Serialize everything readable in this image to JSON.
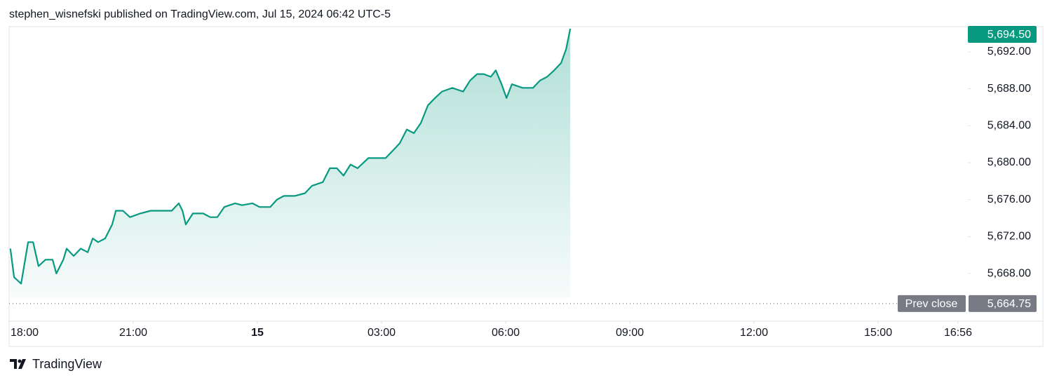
{
  "header": "stephen_wisnefski published on TradingView.com, Jul 15, 2024 06:42 UTC-5",
  "footer": "TradingView",
  "chart_data": {
    "type": "area",
    "color": "#089981",
    "x": [
      18.03,
      18.12,
      18.29,
      18.46,
      18.58,
      18.71,
      18.88,
      19.05,
      19.14,
      19.31,
      19.39,
      19.56,
      19.73,
      19.9,
      20.02,
      20.15,
      20.32,
      20.49,
      20.58,
      20.75,
      20.92,
      21.17,
      21.42,
      21.68,
      21.93,
      22.1,
      22.19,
      22.27,
      22.44,
      22.69,
      22.86,
      23.03,
      23.2,
      23.46,
      23.63,
      23.88,
      24.05,
      24.31,
      24.47,
      24.64,
      24.9,
      25.15,
      25.32,
      25.58,
      25.75,
      25.92,
      26.08,
      26.25,
      26.42,
      26.68,
      26.93,
      27.1,
      27.27,
      27.44,
      27.61,
      27.78,
      27.95,
      28.12,
      28.29,
      28.46,
      28.71,
      28.97,
      29.14,
      29.31,
      29.47,
      29.64,
      29.76,
      29.9,
      30.02,
      30.15,
      30.41,
      30.66,
      30.83,
      31.0,
      31.17,
      31.34,
      31.46,
      31.56
    ],
    "values": [
      5670.7,
      5667.6,
      5666.9,
      5671.4,
      5671.4,
      5668.8,
      5669.5,
      5669.5,
      5668.0,
      5669.5,
      5670.7,
      5669.9,
      5670.7,
      5670.3,
      5671.8,
      5671.4,
      5671.8,
      5673.3,
      5674.8,
      5674.8,
      5674.1,
      5674.5,
      5674.8,
      5674.8,
      5674.8,
      5675.6,
      5674.8,
      5673.3,
      5674.5,
      5674.5,
      5674.1,
      5674.1,
      5675.2,
      5675.6,
      5675.4,
      5675.6,
      5675.2,
      5675.2,
      5676.0,
      5676.4,
      5676.4,
      5676.7,
      5677.5,
      5677.9,
      5679.4,
      5679.4,
      5678.6,
      5679.8,
      5679.4,
      5680.5,
      5680.5,
      5680.5,
      5681.3,
      5682.1,
      5683.6,
      5683.2,
      5684.3,
      5686.2,
      5687.0,
      5687.7,
      5688.1,
      5687.7,
      5688.9,
      5689.6,
      5689.6,
      5689.3,
      5690.0,
      5688.5,
      5687.0,
      5688.5,
      5688.1,
      5688.1,
      5688.9,
      5689.3,
      5690.0,
      5690.8,
      5692.3,
      5694.5
    ],
    "last_price": {
      "value": 5694.5,
      "label": "5,694.50",
      "color": "#089981"
    },
    "prev_close": {
      "label": "Prev close",
      "value": 5664.75,
      "value_label": "5,664.75",
      "color": "#787b86"
    },
    "xlim": [
      18,
      41.1
    ],
    "xticks": [
      {
        "value": 18,
        "label": "18:00"
      },
      {
        "value": 21,
        "label": "21:00"
      },
      {
        "value": 24,
        "label": "15",
        "bold": true
      },
      {
        "value": 27,
        "label": "03:00"
      },
      {
        "value": 30,
        "label": "06:00"
      },
      {
        "value": 33,
        "label": "09:00"
      },
      {
        "value": 36,
        "label": "12:00"
      },
      {
        "value": 39,
        "label": "15:00"
      },
      {
        "value": 40.93,
        "label": "16:56"
      }
    ],
    "ylim": [
      5662.84,
      5694.73
    ],
    "yticks": [
      {
        "value": 5668,
        "label": "5,668.00"
      },
      {
        "value": 5672,
        "label": "5,672.00"
      },
      {
        "value": 5676,
        "label": "5,676.00"
      },
      {
        "value": 5680,
        "label": "5,680.00"
      },
      {
        "value": 5684,
        "label": "5,684.00"
      },
      {
        "value": 5688,
        "label": "5,688.00"
      },
      {
        "value": 5692,
        "label": "5,692.00"
      }
    ]
  }
}
